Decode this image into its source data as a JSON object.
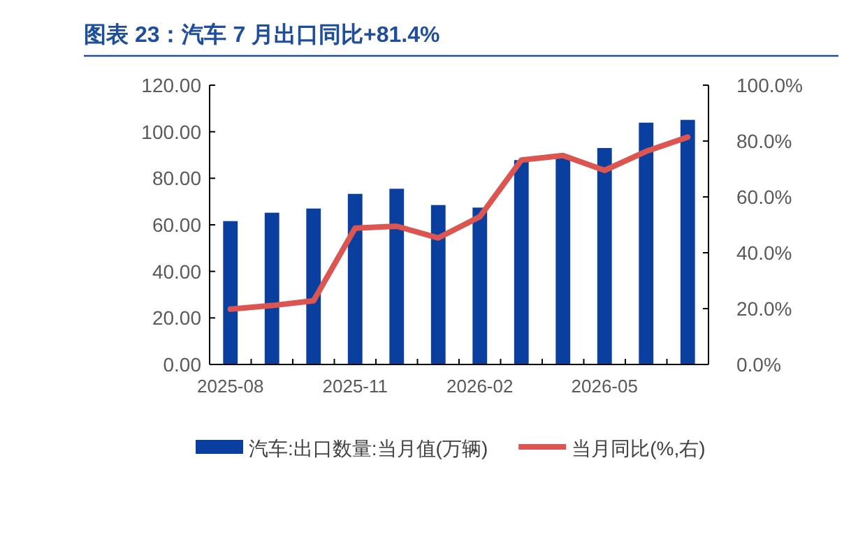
{
  "chart_data": {
    "type": "bar",
    "title": "图表 23：汽车 7 月出口同比+81.4%",
    "categories": [
      "2025-08",
      null,
      null,
      "2025-11",
      null,
      null,
      "2026-02",
      null,
      null,
      "2026-05",
      null,
      null
    ],
    "series": [
      {
        "name": "汽车:出口数量:当月值(万辆)",
        "color": "#0a3fa0",
        "values": [
          61.6,
          65.2,
          67.0,
          73.3,
          75.5,
          68.5,
          67.4,
          87.8,
          89.8,
          93.0,
          103.9,
          105.1
        ]
      },
      {
        "name": "当月同比(%,右)",
        "type": "line",
        "axis": "y2",
        "color": "#dc5550",
        "values": [
          19.8,
          21.1,
          22.8,
          48.8,
          49.5,
          45.3,
          52.9,
          73.2,
          74.8,
          69.5,
          76.3,
          81.4
        ]
      }
    ],
    "ylim": [
      0,
      120
    ],
    "yticks": [
      {
        "value": 0,
        "label": "0.00"
      },
      {
        "value": 20,
        "label": "20.00"
      },
      {
        "value": 40,
        "label": "40.00"
      },
      {
        "value": 60,
        "label": "60.00"
      },
      {
        "value": 80,
        "label": "80.00"
      },
      {
        "value": 100,
        "label": "100.00"
      },
      {
        "value": 120,
        "label": "120.00"
      }
    ],
    "y2lim": [
      0,
      100
    ],
    "y2ticks": [
      {
        "value": 0,
        "label": "0.0%"
      },
      {
        "value": 20,
        "label": "20.0%"
      },
      {
        "value": 40,
        "label": "40.0%"
      },
      {
        "value": 60,
        "label": "60.0%"
      },
      {
        "value": 80,
        "label": "80.0%"
      },
      {
        "value": 100,
        "label": "100.0%"
      }
    ],
    "legend": "bottom",
    "grid": false,
    "marker": "none",
    "line_style": "solid"
  }
}
